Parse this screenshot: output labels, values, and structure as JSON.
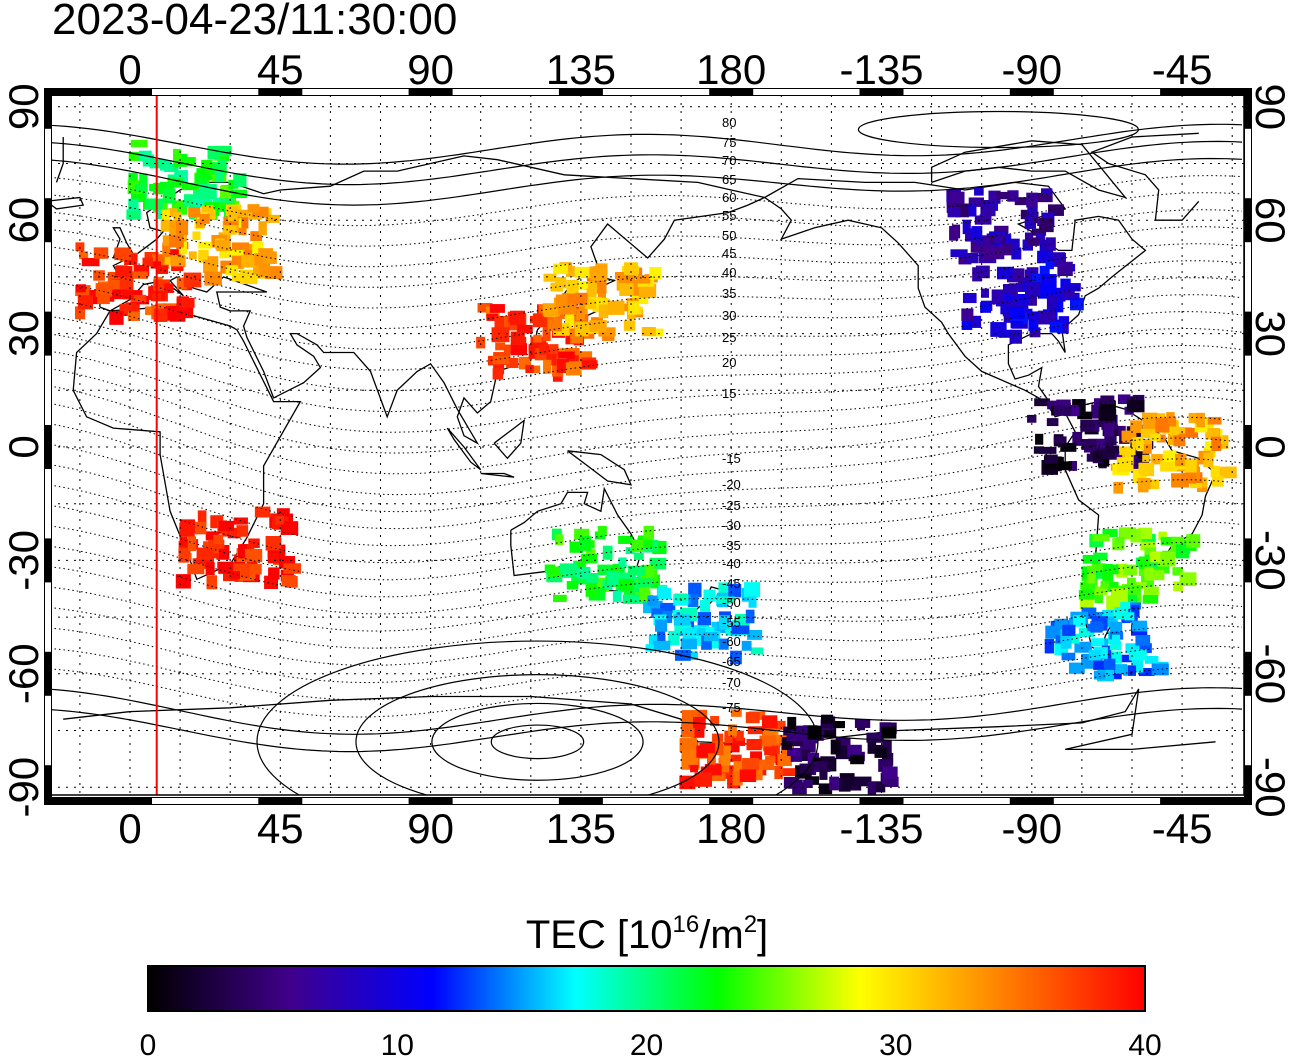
{
  "timestamp": "2023-04-23/11:30:00",
  "lon_ticks": [
    "0",
    "45",
    "90",
    "135",
    "180",
    "-135",
    "-90",
    "-45"
  ],
  "lat_ticks": [
    "90",
    "60",
    "30",
    "0",
    "-30",
    "-60",
    "-90"
  ],
  "contour_labels": [
    "80",
    "75",
    "70",
    "65",
    "60",
    "55",
    "50",
    "45",
    "40",
    "35",
    "30",
    "25",
    "20",
    "15",
    "-15",
    "-20",
    "-25",
    "-30",
    "-35",
    "-40",
    "-45",
    "-50",
    "-55",
    "-60",
    "-65",
    "-70",
    "-75"
  ],
  "colorbar": {
    "title_prefix": "TEC  [10",
    "title_exp1": "16",
    "title_mid": "/m",
    "title_exp2": "2",
    "title_suffix": "]",
    "tick_labels": [
      "0",
      "10",
      "20",
      "30",
      "40"
    ],
    "min": 0,
    "max": 40,
    "stops": [
      "#000000",
      "#40008c",
      "#0000ff",
      "#00ffff",
      "#00ff00",
      "#ffff00",
      "#ff8000",
      "#ff0000"
    ]
  },
  "chart_data": {
    "type": "heatmap",
    "title": "2023-04-23/11:30:00",
    "projection": "equirectangular",
    "x_axis_longitudes": [
      0,
      45,
      90,
      135,
      180,
      -135,
      -90,
      -45
    ],
    "y_axis_latitudes": [
      90,
      60,
      30,
      0,
      -30,
      -60,
      -90
    ],
    "xlim_deg": [
      -25,
      335
    ],
    "ylim_deg": [
      -92,
      92
    ],
    "grid": true,
    "sun_meridian_lon": 8,
    "value_range": [
      0,
      40
    ],
    "units": "10^16/m^2",
    "regions": [
      {
        "lon": 0,
        "lat": 45,
        "tec": 38
      },
      {
        "lon": 15,
        "lat": 72,
        "tec": 22
      },
      {
        "lon": 25,
        "lat": 55,
        "tec": 32
      },
      {
        "lon": 30,
        "lat": -25,
        "tec": 39
      },
      {
        "lon": 120,
        "lat": 30,
        "tec": 37
      },
      {
        "lon": 140,
        "lat": 40,
        "tec": 32
      },
      {
        "lon": 140,
        "lat": -30,
        "tec": 22
      },
      {
        "lon": 170,
        "lat": -45,
        "tec": 16
      },
      {
        "lon": -100,
        "lat": 60,
        "tec": 7
      },
      {
        "lon": -95,
        "lat": 40,
        "tec": 9
      },
      {
        "lon": -75,
        "lat": 5,
        "tec": 3
      },
      {
        "lon": -50,
        "lat": 0,
        "tec": 32
      },
      {
        "lon": -60,
        "lat": -30,
        "tec": 24
      },
      {
        "lon": -70,
        "lat": -50,
        "tec": 15
      },
      {
        "lon": 180,
        "lat": -78,
        "tec": 37
      },
      {
        "lon": -150,
        "lat": -80,
        "tec": 3
      }
    ]
  }
}
